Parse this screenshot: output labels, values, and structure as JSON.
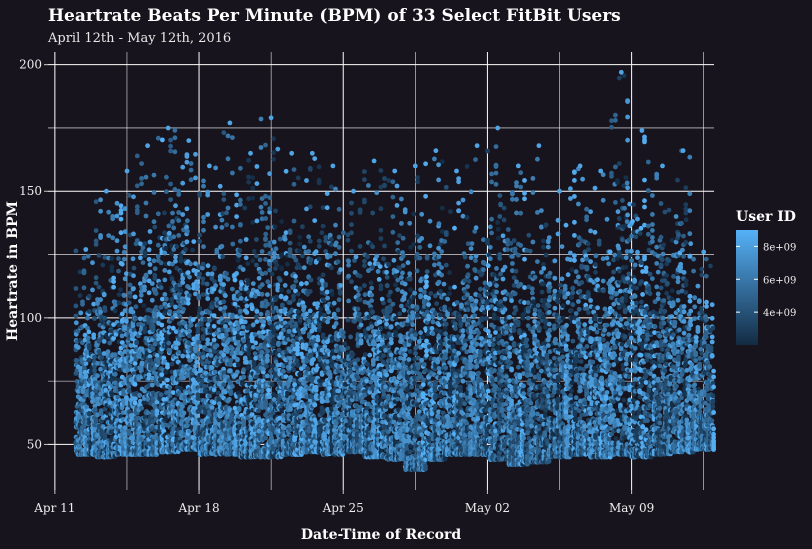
{
  "chart_data": {
    "type": "scatter",
    "title": "Heartrate Beats Per Minute (BPM) of 33 Select FitBit Users",
    "subtitle": "April 12th - May 12th, 2016",
    "xlabel": "Date-Time of Record",
    "ylabel": "Heartrate in BPM",
    "x_range": [
      "2016-04-10T16:00",
      "2016-05-13T00:00"
    ],
    "ylim": [
      32,
      205
    ],
    "x_ticks": [
      {
        "label": "Apr 11",
        "date": "2016-04-11"
      },
      {
        "label": "Apr 18",
        "date": "2016-04-18"
      },
      {
        "label": "Apr 25",
        "date": "2016-04-25"
      },
      {
        "label": "May 02",
        "date": "2016-05-02"
      },
      {
        "label": "May 09",
        "date": "2016-05-09"
      }
    ],
    "y_ticks": [
      50,
      100,
      150,
      200
    ],
    "grid": true,
    "legend": {
      "title": "User ID",
      "position": "right",
      "type": "colorbar",
      "ticks": [
        {
          "label": "4e+09",
          "value": 4000000000
        },
        {
          "label": "6e+09",
          "value": 6000000000
        },
        {
          "label": "8e+09",
          "value": 8000000000
        }
      ],
      "range": [
        2000000000,
        9000000000
      ],
      "color_low": "#132b43",
      "color_high": "#56b1f7"
    },
    "daily_summary": [
      {
        "date": "2016-04-12",
        "min": 46,
        "max": 127
      },
      {
        "date": "2016-04-13",
        "min": 45,
        "max": 150
      },
      {
        "date": "2016-04-14",
        "min": 46,
        "max": 158
      },
      {
        "date": "2016-04-15",
        "min": 46,
        "max": 168
      },
      {
        "date": "2016-04-16",
        "min": 47,
        "max": 175
      },
      {
        "date": "2016-04-17",
        "min": 48,
        "max": 170
      },
      {
        "date": "2016-04-18",
        "min": 46,
        "max": 160
      },
      {
        "date": "2016-04-19",
        "min": 46,
        "max": 177
      },
      {
        "date": "2016-04-20",
        "min": 45,
        "max": 165
      },
      {
        "date": "2016-04-21",
        "min": 45,
        "max": 179
      },
      {
        "date": "2016-04-22",
        "min": 46,
        "max": 165
      },
      {
        "date": "2016-04-23",
        "min": 47,
        "max": 165
      },
      {
        "date": "2016-04-24",
        "min": 46,
        "max": 160
      },
      {
        "date": "2016-04-25",
        "min": 47,
        "max": 150
      },
      {
        "date": "2016-04-26",
        "min": 45,
        "max": 162
      },
      {
        "date": "2016-04-27",
        "min": 44,
        "max": 158
      },
      {
        "date": "2016-04-28",
        "min": 40,
        "max": 160
      },
      {
        "date": "2016-04-29",
        "min": 44,
        "max": 166
      },
      {
        "date": "2016-04-30",
        "min": 46,
        "max": 158
      },
      {
        "date": "2016-05-01",
        "min": 46,
        "max": 168
      },
      {
        "date": "2016-05-02",
        "min": 44,
        "max": 175
      },
      {
        "date": "2016-05-03",
        "min": 42,
        "max": 160
      },
      {
        "date": "2016-05-04",
        "min": 43,
        "max": 168
      },
      {
        "date": "2016-05-05",
        "min": 45,
        "max": 150
      },
      {
        "date": "2016-05-06",
        "min": 46,
        "max": 160
      },
      {
        "date": "2016-05-07",
        "min": 45,
        "max": 158
      },
      {
        "date": "2016-05-08",
        "min": 46,
        "max": 197
      },
      {
        "date": "2016-05-09",
        "min": 45,
        "max": 174
      },
      {
        "date": "2016-05-10",
        "min": 46,
        "max": 160
      },
      {
        "date": "2016-05-11",
        "min": 47,
        "max": 166
      },
      {
        "date": "2016-05-12",
        "min": 48,
        "max": 126
      }
    ]
  }
}
